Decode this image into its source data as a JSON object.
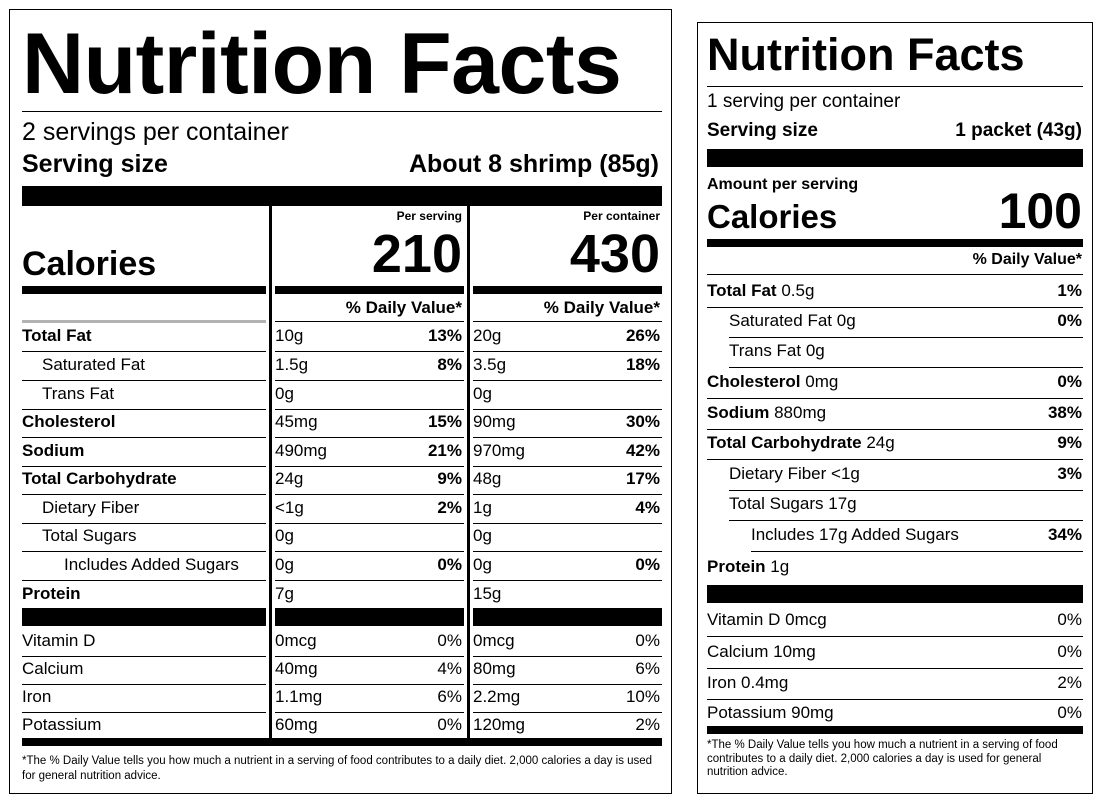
{
  "left_label": {
    "title": "Nutrition Facts",
    "servings_per_container": "2 servings per container",
    "serving_size_label": "Serving size",
    "serving_size_value": "About 8 shrimp (85g)",
    "calories_label": "Calories",
    "per_serving_heading": "Per serving",
    "per_container_heading": "Per container",
    "calories_per_serving": "210",
    "calories_per_container": "430",
    "dv_heading": "% Daily Value*",
    "rows": [
      {
        "name": "Total Fat",
        "s_amt": "10g",
        "s_dv": "13%",
        "c_amt": "20g",
        "c_dv": "26%"
      },
      {
        "name": "Saturated Fat",
        "s_amt": "1.5g",
        "s_dv": "8%",
        "c_amt": "3.5g",
        "c_dv": "18%"
      },
      {
        "name": "Trans Fat",
        "s_amt": "0g",
        "s_dv": "",
        "c_amt": "0g",
        "c_dv": ""
      },
      {
        "name": "Cholesterol",
        "s_amt": "45mg",
        "s_dv": "15%",
        "c_amt": "90mg",
        "c_dv": "30%"
      },
      {
        "name": "Sodium",
        "s_amt": "490mg",
        "s_dv": "21%",
        "c_amt": "970mg",
        "c_dv": "42%"
      },
      {
        "name": "Total Carbohydrate",
        "s_amt": "24g",
        "s_dv": "9%",
        "c_amt": "48g",
        "c_dv": "17%"
      },
      {
        "name": "Dietary Fiber",
        "s_amt": "<1g",
        "s_dv": "2%",
        "c_amt": "1g",
        "c_dv": "4%"
      },
      {
        "name": "Total Sugars",
        "s_amt": "0g",
        "s_dv": "",
        "c_amt": "0g",
        "c_dv": ""
      },
      {
        "name": "Includes Added Sugars",
        "s_amt": "0g",
        "s_dv": "0%",
        "c_amt": "0g",
        "c_dv": "0%"
      },
      {
        "name": "Protein",
        "s_amt": "7g",
        "s_dv": "",
        "c_amt": "15g",
        "c_dv": ""
      }
    ],
    "vitamins": [
      {
        "name": "Vitamin D",
        "s_amt": "0mcg",
        "s_dv": "0%",
        "c_amt": "0mcg",
        "c_dv": "0%"
      },
      {
        "name": "Calcium",
        "s_amt": "40mg",
        "s_dv": "4%",
        "c_amt": "80mg",
        "c_dv": "6%"
      },
      {
        "name": "Iron",
        "s_amt": "1.1mg",
        "s_dv": "6%",
        "c_amt": "2.2mg",
        "c_dv": "10%"
      },
      {
        "name": "Potassium",
        "s_amt": "60mg",
        "s_dv": "0%",
        "c_amt": "120mg",
        "c_dv": "2%"
      }
    ],
    "footnote": "*The % Daily Value tells you how much a nutrient in a serving of food contributes to a daily diet. 2,000 calories a day is used for general nutrition advice."
  },
  "right_label": {
    "title": "Nutrition Facts",
    "servings_per_container": "1 serving per container",
    "serving_size_label": "Serving size",
    "serving_size_value": "1 packet (43g)",
    "amount_per_serving": "Amount per serving",
    "calories_label": "Calories",
    "calories_value": "100",
    "dv_heading": "% Daily Value*",
    "rows": [
      {
        "name": "Total Fat",
        "amount": "0.5g",
        "dv": "1%"
      },
      {
        "name": "Saturated Fat",
        "amount": "0g",
        "dv": "0%"
      },
      {
        "name": "Trans Fat",
        "amount": "0g",
        "dv": ""
      },
      {
        "name": "Cholesterol",
        "amount": "0mg",
        "dv": "0%"
      },
      {
        "name": "Sodium",
        "amount": "880mg",
        "dv": "38%"
      },
      {
        "name": "Total Carbohydrate",
        "amount": "24g",
        "dv": "9%"
      },
      {
        "name": "Dietary Fiber",
        "amount": "<1g",
        "dv": "3%"
      },
      {
        "name": "Total Sugars",
        "amount": "17g",
        "dv": ""
      },
      {
        "name": "Includes 17g Added Sugars",
        "amount": "",
        "dv": "34%"
      },
      {
        "name": "Protein",
        "amount": "1g",
        "dv": ""
      }
    ],
    "vitamins": [
      {
        "name": "Vitamin D",
        "amount": "0mcg",
        "dv": "0%"
      },
      {
        "name": "Calcium",
        "amount": "10mg",
        "dv": "0%"
      },
      {
        "name": "Iron",
        "amount": "0.4mg",
        "dv": "2%"
      },
      {
        "name": "Potassium",
        "amount": "90mg",
        "dv": "0%"
      }
    ],
    "footnote": "*The % Daily Value tells you how much a nutrient in a serving of food contributes to a daily diet. 2,000 calories a day is used for general nutrition advice."
  }
}
